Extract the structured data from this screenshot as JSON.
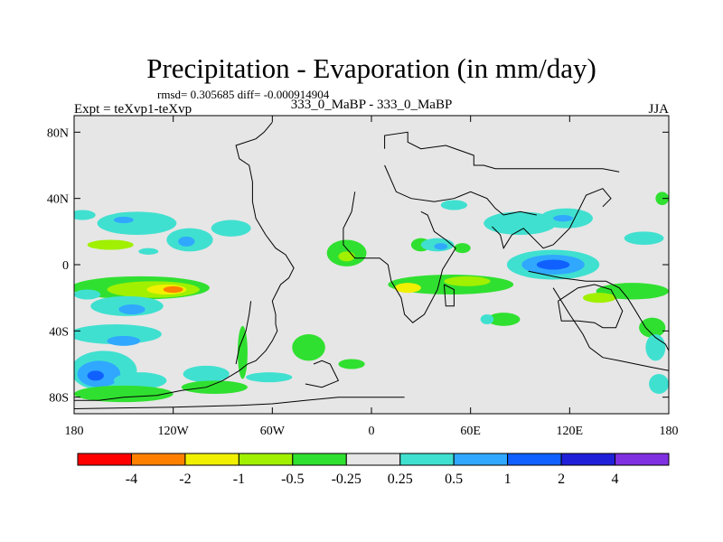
{
  "chart_data": {
    "type": "heatmap",
    "title": "Precipitation - Evaporation (in mm/day)",
    "stats": "rmsd= 0.305685 diff= -0.000914904",
    "left_label": "Expt = teXvp1-teXvp",
    "center_label": "333_0_MaBP - 333_0_MaBP",
    "right_label": "JJA",
    "x_range": [
      -180,
      180
    ],
    "y_range": [
      -90,
      90
    ],
    "x_ticks": [
      {
        "value": -180,
        "label": "180"
      },
      {
        "value": -120,
        "label": "120W"
      },
      {
        "value": -60,
        "label": "60W"
      },
      {
        "value": 0,
        "label": "0"
      },
      {
        "value": 60,
        "label": "60E"
      },
      {
        "value": 120,
        "label": "120E"
      },
      {
        "value": 180,
        "label": "180"
      }
    ],
    "y_ticks": [
      {
        "value": 80,
        "label": "80N"
      },
      {
        "value": 40,
        "label": "40N"
      },
      {
        "value": 0,
        "label": "0"
      },
      {
        "value": -40,
        "label": "40S"
      },
      {
        "value": -80,
        "label": "80S"
      }
    ],
    "colorbar": {
      "bins": [
        {
          "color": "#ff0000"
        },
        {
          "color": "#ff8000"
        },
        {
          "color": "#f0f000"
        },
        {
          "color": "#a0f000"
        },
        {
          "color": "#30e030"
        },
        {
          "color": "#e6e6e6"
        },
        {
          "color": "#40e0d0"
        },
        {
          "color": "#30a8ff"
        },
        {
          "color": "#1060ff"
        },
        {
          "color": "#2020d8"
        },
        {
          "color": "#8030e0"
        }
      ],
      "boundaries": [
        "-4",
        "-2",
        "-1",
        "-0.5",
        "-0.25",
        "0.25",
        "0.5",
        "1",
        "2",
        "4"
      ]
    },
    "regions": [
      {
        "lon": -175,
        "lat": 30,
        "rx": 8,
        "ry": 3,
        "color": "#40e0d0"
      },
      {
        "lon": -142,
        "lat": 25,
        "rx": 24,
        "ry": 7,
        "color": "#40e0d0"
      },
      {
        "lon": -150,
        "lat": 27,
        "rx": 6,
        "ry": 2,
        "color": "#30a8ff"
      },
      {
        "lon": -110,
        "lat": 15,
        "rx": 14,
        "ry": 7,
        "color": "#40e0d0"
      },
      {
        "lon": -112,
        "lat": 14,
        "rx": 5,
        "ry": 3,
        "color": "#30a8ff"
      },
      {
        "lon": -85,
        "lat": 22,
        "rx": 12,
        "ry": 5,
        "color": "#40e0d0"
      },
      {
        "lon": -158,
        "lat": 12,
        "rx": 14,
        "ry": 3,
        "color": "#a0f000"
      },
      {
        "lon": -135,
        "lat": 8,
        "rx": 6,
        "ry": 2,
        "color": "#40e0d0"
      },
      {
        "lon": -140,
        "lat": -14,
        "rx": 42,
        "ry": 7,
        "color": "#30e030"
      },
      {
        "lon": -132,
        "lat": -15,
        "rx": 28,
        "ry": 5,
        "color": "#a0f000"
      },
      {
        "lon": -124,
        "lat": -15,
        "rx": 12,
        "ry": 3,
        "color": "#f0f000"
      },
      {
        "lon": -120,
        "lat": -15,
        "rx": 6,
        "ry": 2,
        "color": "#ff8000"
      },
      {
        "lon": -148,
        "lat": -25,
        "rx": 22,
        "ry": 6,
        "color": "#40e0d0"
      },
      {
        "lon": -145,
        "lat": -27,
        "rx": 8,
        "ry": 3,
        "color": "#30a8ff"
      },
      {
        "lon": -172,
        "lat": -18,
        "rx": 8,
        "ry": 3,
        "color": "#40e0d0"
      },
      {
        "lon": -155,
        "lat": -42,
        "rx": 28,
        "ry": 6,
        "color": "#40e0d0"
      },
      {
        "lon": -150,
        "lat": -46,
        "rx": 10,
        "ry": 3,
        "color": "#30a8ff"
      },
      {
        "lon": -162,
        "lat": -64,
        "rx": 20,
        "ry": 12,
        "color": "#40e0d0"
      },
      {
        "lon": -165,
        "lat": -66,
        "rx": 13,
        "ry": 8,
        "color": "#30a8ff"
      },
      {
        "lon": -167,
        "lat": -67,
        "rx": 5,
        "ry": 3,
        "color": "#1060ff"
      },
      {
        "lon": -140,
        "lat": -70,
        "rx": 16,
        "ry": 5,
        "color": "#40e0d0"
      },
      {
        "lon": -150,
        "lat": -78,
        "rx": 30,
        "ry": 5,
        "color": "#30e030"
      },
      {
        "lon": -100,
        "lat": -66,
        "rx": 14,
        "ry": 5,
        "color": "#40e0d0"
      },
      {
        "lon": -78,
        "lat": -53,
        "rx": 3,
        "ry": 16,
        "color": "#30e030"
      },
      {
        "lon": -95,
        "lat": -74,
        "rx": 20,
        "ry": 4,
        "color": "#30e030"
      },
      {
        "lon": -38,
        "lat": -50,
        "rx": 10,
        "ry": 8,
        "color": "#30e030"
      },
      {
        "lon": -62,
        "lat": -68,
        "rx": 14,
        "ry": 3,
        "color": "#40e0d0"
      },
      {
        "lon": -12,
        "lat": -60,
        "rx": 8,
        "ry": 3,
        "color": "#30e030"
      },
      {
        "lon": -15,
        "lat": 7,
        "rx": 12,
        "ry": 8,
        "color": "#30e030"
      },
      {
        "lon": -15,
        "lat": 5,
        "rx": 5,
        "ry": 3,
        "color": "#a0f000"
      },
      {
        "lon": 30,
        "lat": 12,
        "rx": 6,
        "ry": 4,
        "color": "#30e030"
      },
      {
        "lon": 40,
        "lat": 12,
        "rx": 10,
        "ry": 4,
        "color": "#40e0d0"
      },
      {
        "lon": 42,
        "lat": 11,
        "rx": 4,
        "ry": 2,
        "color": "#30a8ff"
      },
      {
        "lon": 50,
        "lat": 36,
        "rx": 8,
        "ry": 3,
        "color": "#40e0d0"
      },
      {
        "lon": 55,
        "lat": 10,
        "rx": 5,
        "ry": 3,
        "color": "#30e030"
      },
      {
        "lon": 48,
        "lat": -12,
        "rx": 38,
        "ry": 6,
        "color": "#30e030"
      },
      {
        "lon": 58,
        "lat": -10,
        "rx": 14,
        "ry": 3,
        "color": "#a0f000"
      },
      {
        "lon": 22,
        "lat": -14,
        "rx": 8,
        "ry": 3,
        "color": "#f0f000"
      },
      {
        "lon": 90,
        "lat": 25,
        "rx": 22,
        "ry": 7,
        "color": "#40e0d0"
      },
      {
        "lon": 118,
        "lat": 28,
        "rx": 16,
        "ry": 6,
        "color": "#40e0d0"
      },
      {
        "lon": 116,
        "lat": 28,
        "rx": 6,
        "ry": 2,
        "color": "#30a8ff"
      },
      {
        "lon": 165,
        "lat": 16,
        "rx": 12,
        "ry": 4,
        "color": "#40e0d0"
      },
      {
        "lon": 110,
        "lat": 0,
        "rx": 28,
        "ry": 9,
        "color": "#40e0d0"
      },
      {
        "lon": 110,
        "lat": 0,
        "rx": 19,
        "ry": 6,
        "color": "#30a8ff"
      },
      {
        "lon": 110,
        "lat": 0,
        "rx": 10,
        "ry": 3,
        "color": "#1060ff"
      },
      {
        "lon": 158,
        "lat": -16,
        "rx": 22,
        "ry": 5,
        "color": "#30e030"
      },
      {
        "lon": 138,
        "lat": -20,
        "rx": 10,
        "ry": 3,
        "color": "#a0f000"
      },
      {
        "lon": 80,
        "lat": -33,
        "rx": 10,
        "ry": 4,
        "color": "#30e030"
      },
      {
        "lon": 70,
        "lat": -33,
        "rx": 4,
        "ry": 3,
        "color": "#40e0d0"
      },
      {
        "lon": 170,
        "lat": -38,
        "rx": 8,
        "ry": 6,
        "color": "#30e030"
      },
      {
        "lon": 172,
        "lat": -50,
        "rx": 6,
        "ry": 8,
        "color": "#40e0d0"
      },
      {
        "lon": 174,
        "lat": -72,
        "rx": 6,
        "ry": 6,
        "color": "#40e0d0"
      },
      {
        "lon": 176,
        "lat": 40,
        "rx": 4,
        "ry": 4,
        "color": "#30e030"
      }
    ],
    "coastlines": [
      {
        "points": [
          [
            -180,
            -82
          ],
          [
            -165,
            -82
          ],
          [
            -150,
            -80
          ],
          [
            -130,
            -79
          ],
          [
            -115,
            -76
          ],
          [
            -100,
            -74
          ],
          [
            -90,
            -70
          ],
          [
            -80,
            -64
          ],
          [
            -75,
            -60
          ],
          [
            -70,
            -58
          ],
          [
            -64,
            -52
          ],
          [
            -60,
            -46
          ],
          [
            -57,
            -40
          ],
          [
            -58,
            -36
          ],
          [
            -58,
            -30
          ],
          [
            -60,
            -22
          ],
          [
            -55,
            -12
          ],
          [
            -50,
            -8
          ],
          [
            -47,
            -2
          ],
          [
            -52,
            6
          ],
          [
            -58,
            10
          ],
          [
            -64,
            18
          ],
          [
            -70,
            28
          ],
          [
            -72,
            38
          ],
          [
            -72,
            50
          ],
          [
            -74,
            60
          ],
          [
            -80,
            64
          ],
          [
            -82,
            72
          ],
          [
            -70,
            76
          ],
          [
            -65,
            80
          ],
          [
            -60,
            86
          ]
        ]
      },
      {
        "points": [
          [
            -180,
            -87
          ],
          [
            -120,
            -86
          ],
          [
            -80,
            -85
          ],
          [
            -60,
            -84
          ],
          [
            -40,
            -82
          ],
          [
            -20,
            -80
          ],
          [
            0,
            -80
          ],
          [
            20,
            -80
          ]
        ]
      },
      {
        "points": [
          [
            -82,
            -60
          ],
          [
            -80,
            -50
          ],
          [
            -76,
            -40
          ],
          [
            -74,
            -30
          ],
          [
            -73,
            -22
          ]
        ]
      },
      {
        "points": [
          [
            -35,
            -60
          ],
          [
            -30,
            -58
          ],
          [
            -25,
            -60
          ],
          [
            -20,
            -70
          ],
          [
            -30,
            -74
          ],
          [
            -40,
            -72
          ]
        ]
      },
      {
        "points": [
          [
            8,
            70
          ],
          [
            8,
            78
          ],
          [
            22,
            80
          ],
          [
            22,
            74
          ],
          [
            30,
            70
          ],
          [
            45,
            72
          ],
          [
            62,
            66
          ],
          [
            62,
            60
          ],
          [
            68,
            60
          ],
          [
            75,
            58
          ],
          [
            95,
            58
          ],
          [
            115,
            58
          ],
          [
            140,
            58
          ],
          [
            150,
            56
          ]
        ]
      },
      {
        "points": [
          [
            8,
            60
          ],
          [
            15,
            44
          ],
          [
            24,
            40
          ],
          [
            38,
            38
          ],
          [
            50,
            40
          ],
          [
            60,
            44
          ],
          [
            70,
            40
          ],
          [
            75,
            34
          ],
          [
            80,
            30
          ],
          [
            90,
            32
          ],
          [
            100,
            30
          ]
        ]
      },
      {
        "points": [
          [
            -10,
            44
          ],
          [
            -12,
            32
          ],
          [
            -17,
            22
          ],
          [
            -17,
            12
          ],
          [
            -10,
            4
          ],
          [
            5,
            4
          ],
          [
            10,
            0
          ],
          [
            12,
            -10
          ],
          [
            18,
            -20
          ],
          [
            20,
            -30
          ],
          [
            25,
            -35
          ],
          [
            32,
            -30
          ],
          [
            40,
            -15
          ],
          [
            43,
            -3
          ],
          [
            51,
            10
          ],
          [
            45,
            15
          ],
          [
            38,
            20
          ],
          [
            34,
            30
          ],
          [
            30,
            32
          ]
        ]
      },
      {
        "points": [
          [
            44,
            -12
          ],
          [
            50,
            -15
          ],
          [
            50,
            -25
          ],
          [
            45,
            -25
          ],
          [
            44,
            -12
          ]
        ]
      },
      {
        "points": [
          [
            73,
            23
          ],
          [
            78,
            18
          ],
          [
            80,
            10
          ],
          [
            85,
            18
          ],
          [
            92,
            22
          ],
          [
            98,
            16
          ],
          [
            104,
            10
          ],
          [
            110,
            12
          ],
          [
            120,
            22
          ],
          [
            125,
            32
          ],
          [
            130,
            42
          ],
          [
            140,
            46
          ],
          [
            145,
            40
          ],
          [
            140,
            35
          ]
        ]
      },
      {
        "points": [
          [
            95,
            -4
          ],
          [
            105,
            -6
          ],
          [
            115,
            -8
          ],
          [
            130,
            -10
          ],
          [
            142,
            -10
          ],
          [
            150,
            -14
          ],
          [
            155,
            -20
          ],
          [
            160,
            -28
          ],
          [
            166,
            -38
          ],
          [
            172,
            -44
          ],
          [
            178,
            -48
          ],
          [
            180,
            -52
          ]
        ]
      },
      {
        "points": [
          [
            113,
            -22
          ],
          [
            115,
            -34
          ],
          [
            125,
            -34
          ],
          [
            135,
            -35
          ],
          [
            140,
            -38
          ],
          [
            148,
            -38
          ],
          [
            152,
            -28
          ],
          [
            145,
            -15
          ],
          [
            135,
            -12
          ],
          [
            125,
            -14
          ],
          [
            113,
            -22
          ]
        ]
      },
      {
        "points": [
          [
            110,
            -14
          ],
          [
            120,
            -30
          ],
          [
            128,
            -42
          ],
          [
            132,
            -50
          ],
          [
            140,
            -56
          ],
          [
            150,
            -58
          ],
          [
            160,
            -60
          ],
          [
            170,
            -62
          ],
          [
            180,
            -64
          ]
        ]
      }
    ]
  }
}
